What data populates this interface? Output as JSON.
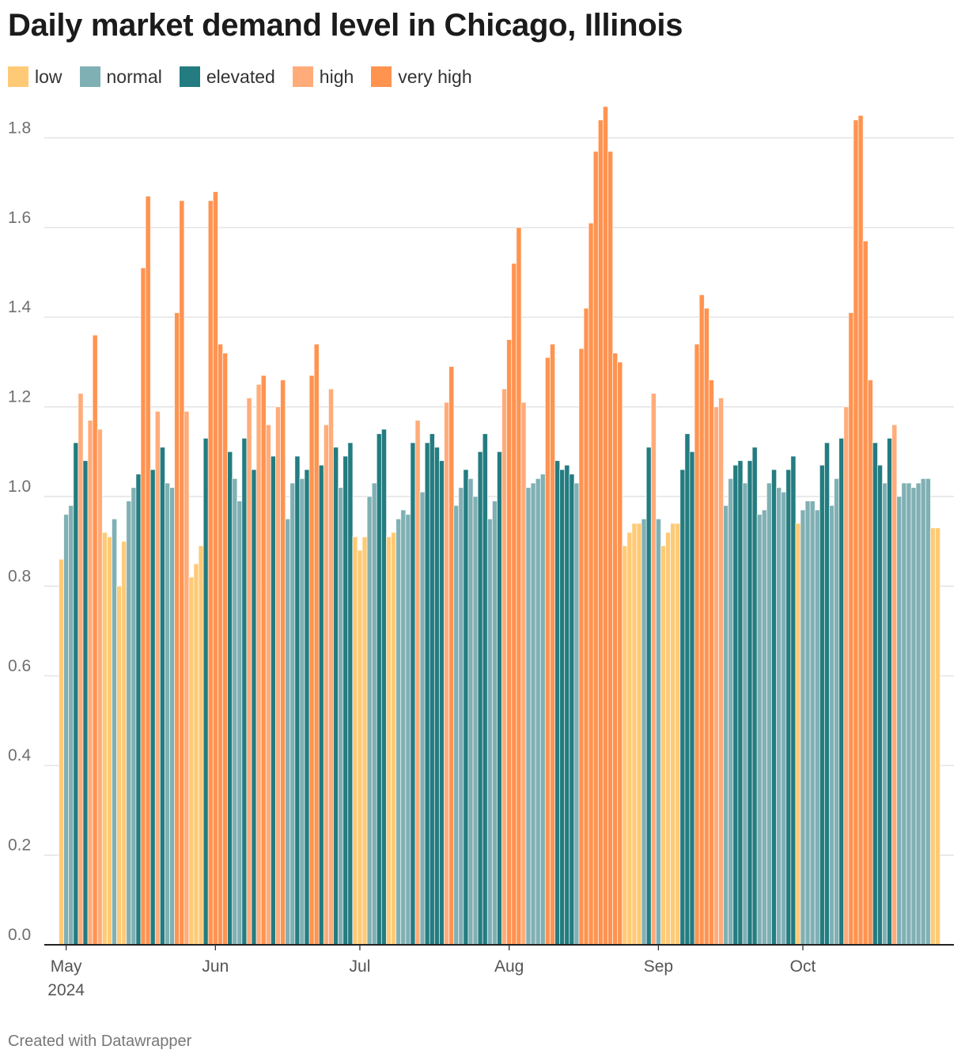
{
  "title": "Daily market demand level in Chicago, Illinois",
  "footer": "Created with Datawrapper",
  "legend": [
    {
      "key": "low",
      "label": "low",
      "color": "#ffca76"
    },
    {
      "key": "normal",
      "label": "normal",
      "color": "#7fb0b4"
    },
    {
      "key": "elevated",
      "label": "elevated",
      "color": "#237c80"
    },
    {
      "key": "high",
      "label": "high",
      "color": "#ffac7a"
    },
    {
      "key": "very_high",
      "label": "very high",
      "color": "#ff9350"
    }
  ],
  "chart_data": {
    "type": "bar",
    "title": "Daily market demand level in Chicago, Illinois",
    "xlabel": "",
    "ylabel": "",
    "ylim": [
      0,
      1.9
    ],
    "yticks": [
      0.0,
      0.2,
      0.4,
      0.6,
      0.8,
      1.0,
      1.2,
      1.4,
      1.6,
      1.8
    ],
    "ytick_labels": [
      "0.0",
      "0.2",
      "0.4",
      "0.6",
      "0.8",
      "1.0",
      "1.2",
      "1.4",
      "1.6",
      "1.8"
    ],
    "x_start_date": "2024-04-30",
    "x_end_date": "2024-10-28",
    "month_ticks": [
      {
        "date": "2024-05-01",
        "label": "May",
        "sublabel": "2024"
      },
      {
        "date": "2024-06-01",
        "label": "Jun",
        "sublabel": ""
      },
      {
        "date": "2024-07-01",
        "label": "Jul",
        "sublabel": ""
      },
      {
        "date": "2024-08-01",
        "label": "Aug",
        "sublabel": ""
      },
      {
        "date": "2024-09-01",
        "label": "Sep",
        "sublabel": ""
      },
      {
        "date": "2024-10-01",
        "label": "Oct",
        "sublabel": ""
      }
    ],
    "categories_key": [
      "low",
      "normal",
      "elevated",
      "high",
      "very high"
    ],
    "values": [
      0.86,
      0.96,
      0.98,
      1.12,
      1.23,
      1.08,
      1.17,
      1.36,
      1.15,
      0.92,
      0.91,
      0.95,
      0.8,
      0.9,
      0.99,
      1.02,
      1.05,
      1.51,
      1.67,
      1.06,
      1.19,
      1.11,
      1.03,
      1.02,
      1.41,
      1.66,
      1.19,
      0.82,
      0.85,
      0.89,
      1.13,
      1.66,
      1.68,
      1.34,
      1.32,
      1.1,
      1.04,
      0.99,
      1.13,
      1.22,
      1.06,
      1.25,
      1.27,
      1.16,
      1.09,
      1.2,
      1.26,
      0.95,
      1.03,
      1.09,
      1.04,
      1.06,
      1.27,
      1.34,
      1.07,
      1.16,
      1.24,
      1.11,
      1.02,
      1.09,
      1.12,
      0.91,
      0.88,
      0.91,
      1.0,
      1.03,
      1.14,
      1.15,
      0.91,
      0.92,
      0.95,
      0.97,
      0.96,
      1.12,
      1.17,
      1.01,
      1.12,
      1.14,
      1.11,
      1.08,
      1.21,
      1.29,
      0.98,
      1.02,
      1.06,
      1.04,
      1.0,
      1.1,
      1.14,
      0.95,
      0.99,
      1.1,
      1.24,
      1.35,
      1.52,
      1.6,
      1.21,
      1.02,
      1.03,
      1.04,
      1.05,
      1.31,
      1.34,
      1.08,
      1.06,
      1.07,
      1.05,
      1.03,
      1.33,
      1.42,
      1.61,
      1.77,
      1.84,
      1.87,
      1.77,
      1.32,
      1.3,
      0.89,
      0.92,
      0.94,
      0.94,
      0.95,
      1.11,
      1.23,
      0.95,
      0.89,
      0.92,
      0.94,
      0.94,
      1.06,
      1.14,
      1.1,
      1.34,
      1.45,
      1.42,
      1.26,
      1.2,
      1.22,
      0.98,
      1.04,
      1.07,
      1.08,
      1.03,
      1.08,
      1.11,
      0.96,
      0.97,
      1.03,
      1.06,
      1.02,
      1.01,
      1.06,
      1.09,
      0.94,
      0.97,
      0.99,
      0.99,
      0.97,
      1.07,
      1.12,
      0.98,
      1.04,
      1.13,
      1.2,
      1.41,
      1.84,
      1.85,
      1.57,
      1.26,
      1.12,
      1.07,
      1.03,
      1.13,
      1.16,
      1.0,
      1.03,
      1.03,
      1.02,
      1.03,
      1.04,
      1.04,
      0.93,
      0.93
    ],
    "levels": [
      "low",
      "normal",
      "normal",
      "elevated",
      "high",
      "elevated",
      "high",
      "very high",
      "high",
      "low",
      "low",
      "normal",
      "low",
      "low",
      "normal",
      "normal",
      "elevated",
      "very high",
      "very high",
      "elevated",
      "high",
      "elevated",
      "normal",
      "normal",
      "very high",
      "very high",
      "high",
      "low",
      "low",
      "low",
      "elevated",
      "very high",
      "very high",
      "very high",
      "very high",
      "elevated",
      "normal",
      "normal",
      "elevated",
      "high",
      "elevated",
      "high",
      "very high",
      "high",
      "elevated",
      "high",
      "very high",
      "normal",
      "normal",
      "elevated",
      "normal",
      "elevated",
      "very high",
      "very high",
      "elevated",
      "high",
      "high",
      "elevated",
      "normal",
      "elevated",
      "elevated",
      "low",
      "low",
      "low",
      "normal",
      "normal",
      "elevated",
      "elevated",
      "low",
      "low",
      "normal",
      "normal",
      "normal",
      "elevated",
      "high",
      "normal",
      "elevated",
      "elevated",
      "elevated",
      "elevated",
      "high",
      "very high",
      "normal",
      "normal",
      "elevated",
      "normal",
      "normal",
      "elevated",
      "elevated",
      "normal",
      "normal",
      "elevated",
      "high",
      "very high",
      "very high",
      "very high",
      "high",
      "normal",
      "normal",
      "normal",
      "normal",
      "very high",
      "very high",
      "elevated",
      "elevated",
      "elevated",
      "elevated",
      "normal",
      "very high",
      "very high",
      "very high",
      "very high",
      "very high",
      "very high",
      "very high",
      "very high",
      "very high",
      "low",
      "low",
      "low",
      "low",
      "normal",
      "elevated",
      "high",
      "normal",
      "low",
      "low",
      "low",
      "low",
      "elevated",
      "elevated",
      "elevated",
      "very high",
      "very high",
      "very high",
      "very high",
      "high",
      "high",
      "normal",
      "normal",
      "elevated",
      "elevated",
      "normal",
      "elevated",
      "elevated",
      "normal",
      "normal",
      "normal",
      "elevated",
      "normal",
      "normal",
      "elevated",
      "elevated",
      "low",
      "normal",
      "normal",
      "normal",
      "normal",
      "elevated",
      "elevated",
      "normal",
      "normal",
      "elevated",
      "high",
      "very high",
      "very high",
      "very high",
      "very high",
      "very high",
      "elevated",
      "elevated",
      "normal",
      "elevated",
      "high",
      "normal",
      "normal",
      "normal",
      "normal",
      "normal",
      "normal",
      "normal",
      "low",
      "low"
    ]
  }
}
